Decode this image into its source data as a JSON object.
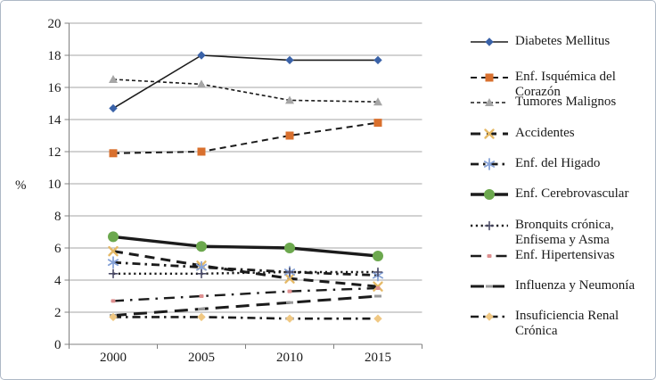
{
  "figure": {
    "kind": "line-chart-with-legend",
    "background": "#ffffff",
    "border_color": "#aeb8c6",
    "grid_color": "#a6a6a6",
    "axis_color": "#808080",
    "text_color": "#1a1a1a",
    "default_line_color": "#1b1b1b"
  },
  "chart_data": {
    "type": "line",
    "title": "",
    "xlabel": "",
    "ylabel": "%",
    "ylim": [
      0,
      20
    ],
    "y_ticks": [
      "0",
      "2",
      "4",
      "6",
      "8",
      "10",
      "12",
      "14",
      "16",
      "18",
      "20"
    ],
    "categories": [
      "2000",
      "2005",
      "2010",
      "2015"
    ],
    "grid": true,
    "legend_position": "right",
    "series": [
      {
        "name": "Diabetes Mellitus",
        "values": [
          14.7,
          18.0,
          17.7,
          17.7
        ],
        "line": "solid",
        "line_width": 1.6,
        "marker": "diamond",
        "color": "#3A62A8"
      },
      {
        "name": "Enf. Isquémica del Corazón",
        "values": [
          11.9,
          12.0,
          13.0,
          13.8
        ],
        "line": "dash",
        "line_width": 2.0,
        "marker": "square",
        "color": "#D9702E"
      },
      {
        "name": "Tumores Malignos",
        "values": [
          16.5,
          16.2,
          15.2,
          15.1
        ],
        "line": "short-dash",
        "line_width": 1.6,
        "marker": "triangle",
        "color": "#A6A6A6"
      },
      {
        "name": "Accidentes",
        "values": [
          5.8,
          4.9,
          4.1,
          3.6
        ],
        "line": "heavy-dash",
        "line_width": 3.0,
        "marker": "x",
        "color": "#E5B966"
      },
      {
        "name": "Enf. del Higado",
        "values": [
          5.1,
          4.8,
          4.5,
          4.3
        ],
        "line": "dash-dot",
        "line_width": 2.8,
        "marker": "asterisk",
        "color": "#87A3D8"
      },
      {
        "name": "Enf. Cerebrovascular",
        "values": [
          6.7,
          6.1,
          6.0,
          5.5
        ],
        "line": "solid",
        "line_width": 3.4,
        "marker": "circle",
        "color": "#6CA84E"
      },
      {
        "name": "Bronquits crónica, Enfisema y Asma",
        "values": [
          4.4,
          4.4,
          4.5,
          4.5
        ],
        "line": "dot",
        "line_width": 2.4,
        "marker": "plus",
        "color": "#4A4A66"
      },
      {
        "name": "Enf. Hipertensivas",
        "values": [
          2.7,
          3.0,
          3.3,
          3.5
        ],
        "line": "dash-dot-wide",
        "line_width": 2.4,
        "marker": "dot",
        "color": "#DD8F8F"
      },
      {
        "name": "Influenza y Neumonía",
        "values": [
          1.8,
          2.2,
          2.6,
          3.0
        ],
        "line": "long-dash",
        "line_width": 3.0,
        "marker": "dash",
        "color": "#9A9A9A"
      },
      {
        "name": "Insuficiencia Renal Crónica",
        "values": [
          1.7,
          1.7,
          1.6,
          1.6
        ],
        "line": "dash-dot",
        "line_width": 2.6,
        "marker": "diamond",
        "color": "#F0C883"
      }
    ]
  }
}
